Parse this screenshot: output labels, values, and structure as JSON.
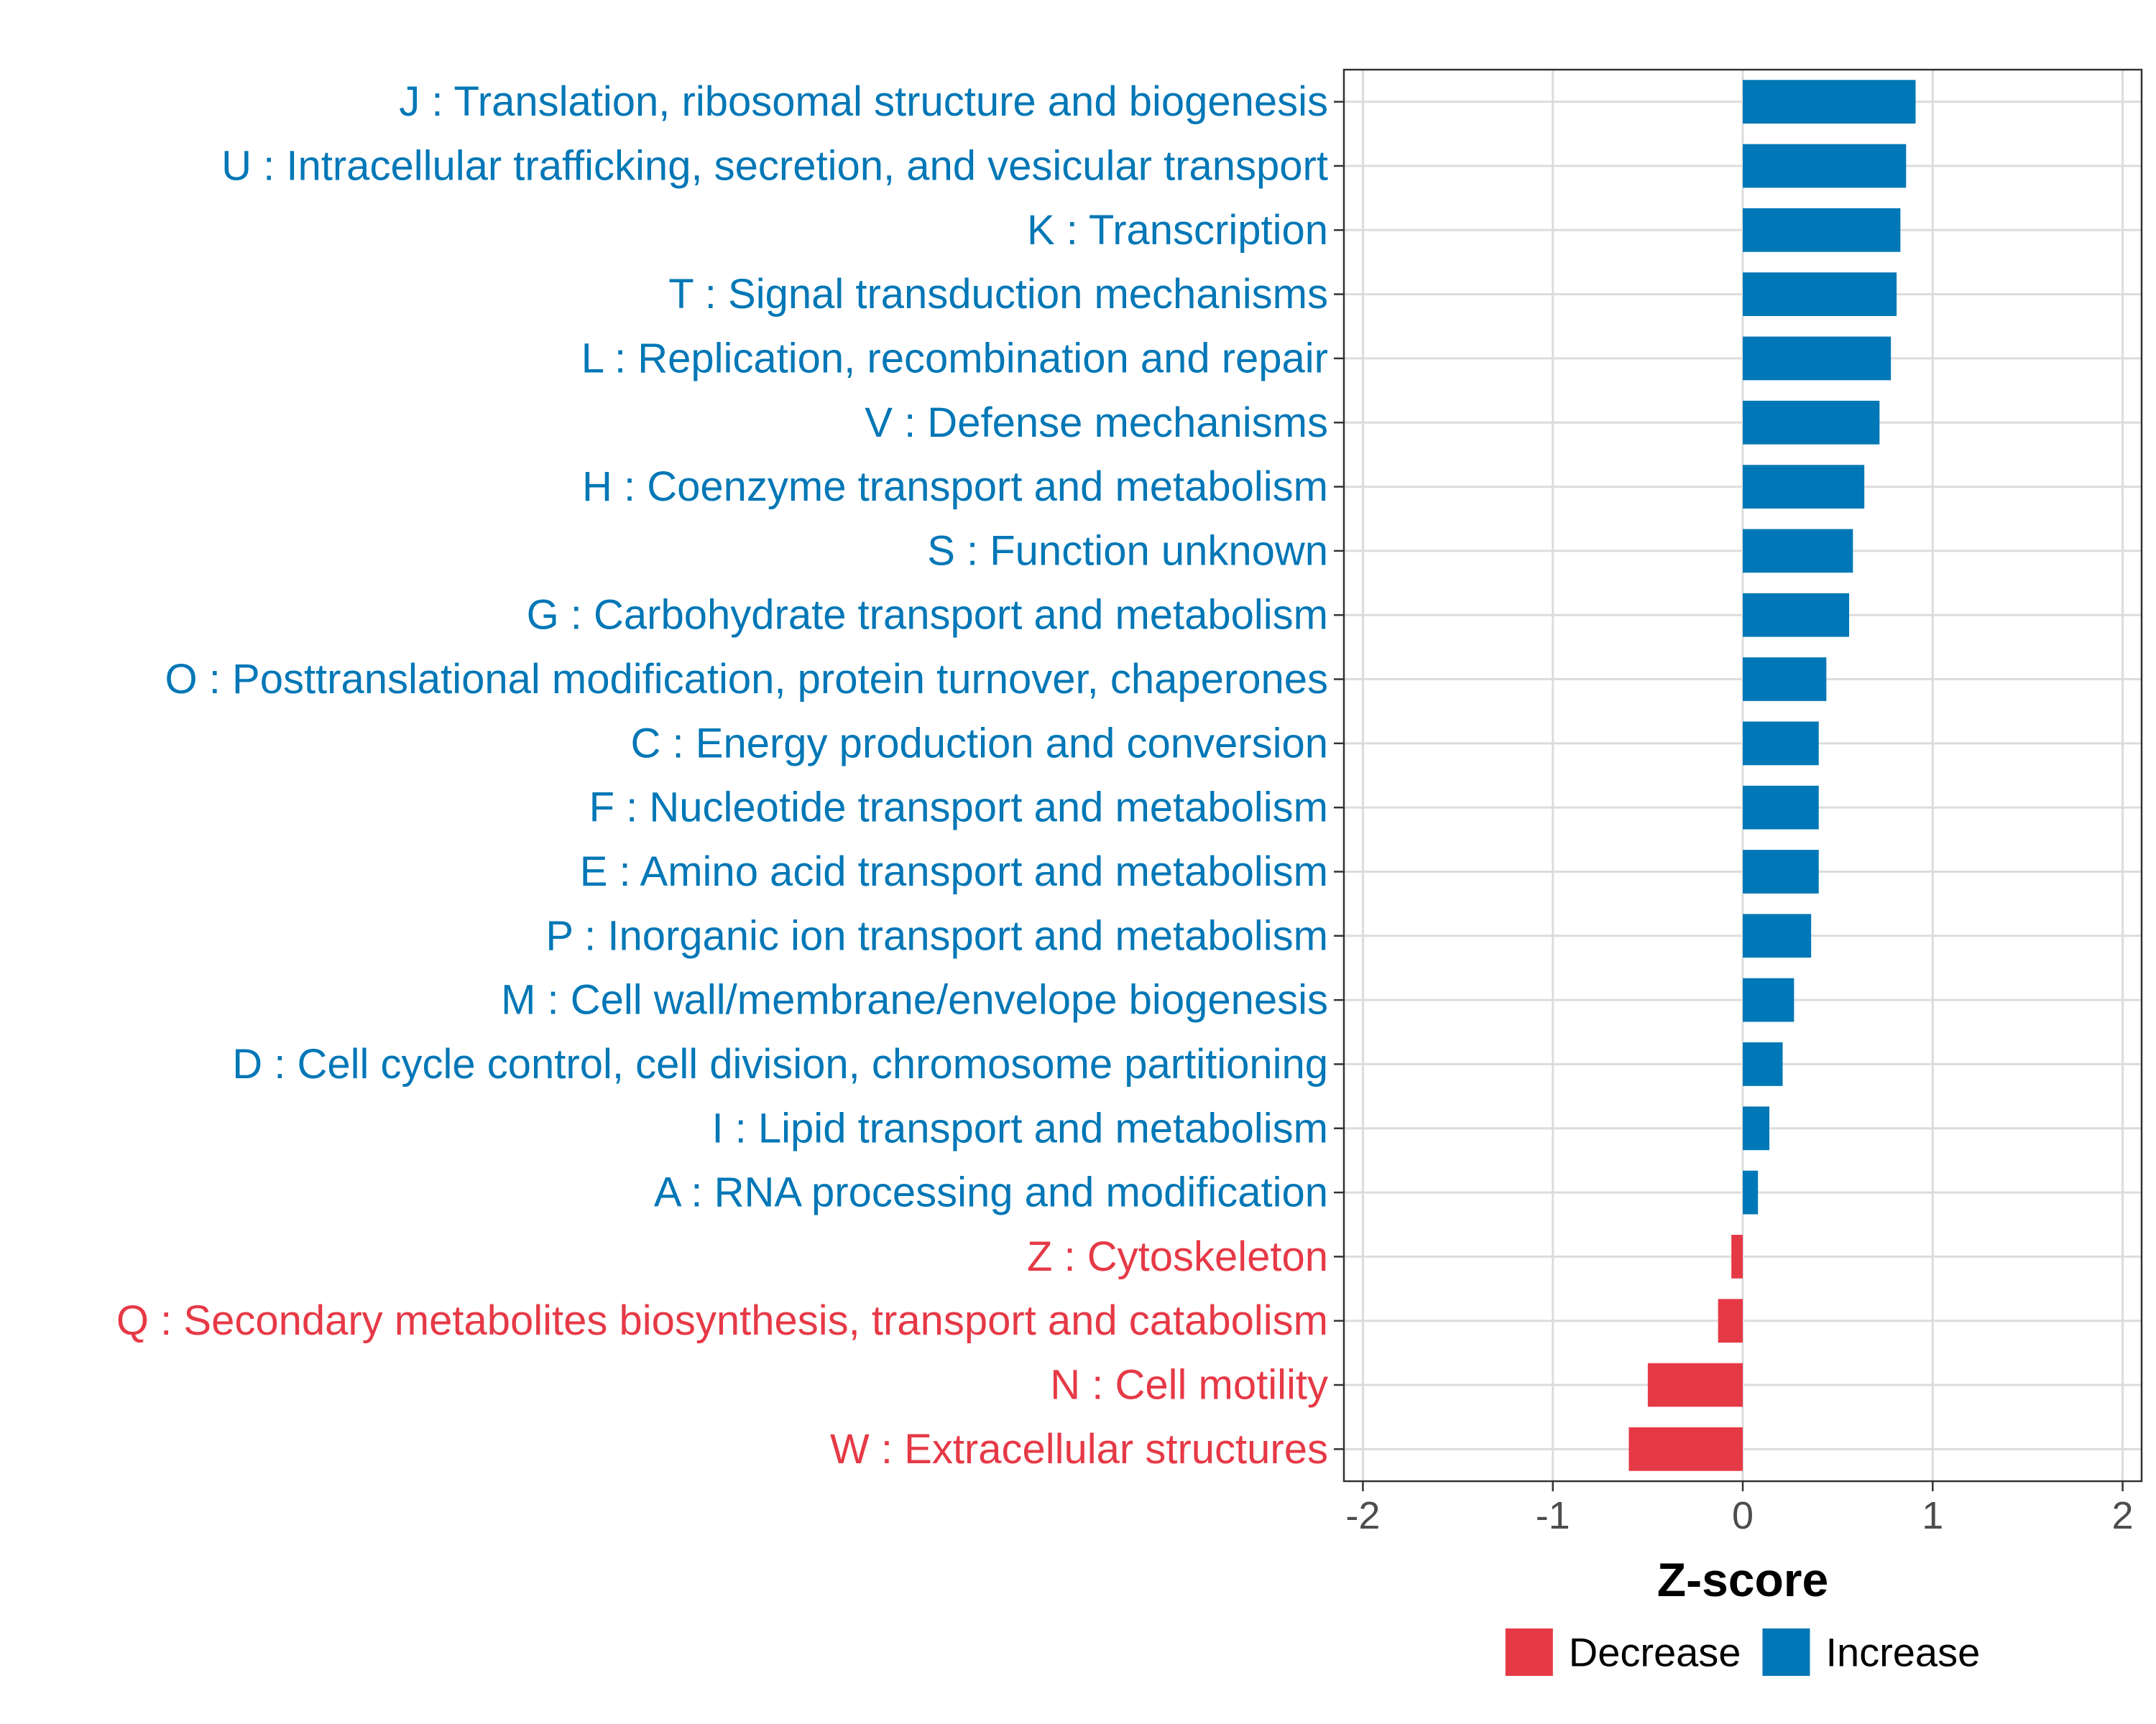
{
  "chart_data": {
    "type": "bar",
    "orientation": "horizontal",
    "title": "",
    "xlabel": "Z-score",
    "ylabel": "",
    "xlim": [
      -2.1,
      2.1
    ],
    "xticks": [
      -2,
      -1,
      0,
      1,
      2
    ],
    "xtick_labels": [
      "-2",
      "-1",
      "0",
      "1",
      "2"
    ],
    "grid": true,
    "legend_position": "bottom",
    "colors": {
      "Decrease": "#e63946",
      "Increase": "#0077b6"
    },
    "legend": [
      {
        "name": "Decrease",
        "color": "#e63946"
      },
      {
        "name": "Increase",
        "color": "#0077b6"
      }
    ],
    "categories": [
      "J : Translation, ribosomal structure and biogenesis",
      "U : Intracellular trafficking, secretion, and vesicular transport",
      "K : Transcription",
      "T : Signal transduction mechanisms",
      "L : Replication, recombination and repair",
      "V : Defense mechanisms",
      "H : Coenzyme transport and metabolism",
      "S : Function unknown",
      "G : Carbohydrate transport and metabolism",
      "O : Posttranslational modification, protein turnover, chaperones",
      "C : Energy production and conversion",
      "F : Nucleotide transport and metabolism",
      "E : Amino acid transport and metabolism",
      "P : Inorganic ion transport and metabolism",
      "M : Cell wall/membrane/envelope biogenesis",
      "D : Cell cycle control, cell division, chromosome partitioning",
      "I : Lipid transport and metabolism",
      "A : RNA processing and modification",
      "Z : Cytoskeleton",
      "Q : Secondary metabolites biosynthesis, transport and catabolism",
      "N : Cell motility",
      "W : Extracellular structures"
    ],
    "values": [
      0.91,
      0.86,
      0.83,
      0.81,
      0.78,
      0.72,
      0.64,
      0.58,
      0.56,
      0.44,
      0.4,
      0.4,
      0.4,
      0.36,
      0.27,
      0.21,
      0.14,
      0.08,
      -0.06,
      -0.13,
      -0.5,
      -0.6
    ],
    "groups": [
      "Increase",
      "Increase",
      "Increase",
      "Increase",
      "Increase",
      "Increase",
      "Increase",
      "Increase",
      "Increase",
      "Increase",
      "Increase",
      "Increase",
      "Increase",
      "Increase",
      "Increase",
      "Increase",
      "Increase",
      "Increase",
      "Decrease",
      "Decrease",
      "Decrease",
      "Decrease"
    ]
  }
}
